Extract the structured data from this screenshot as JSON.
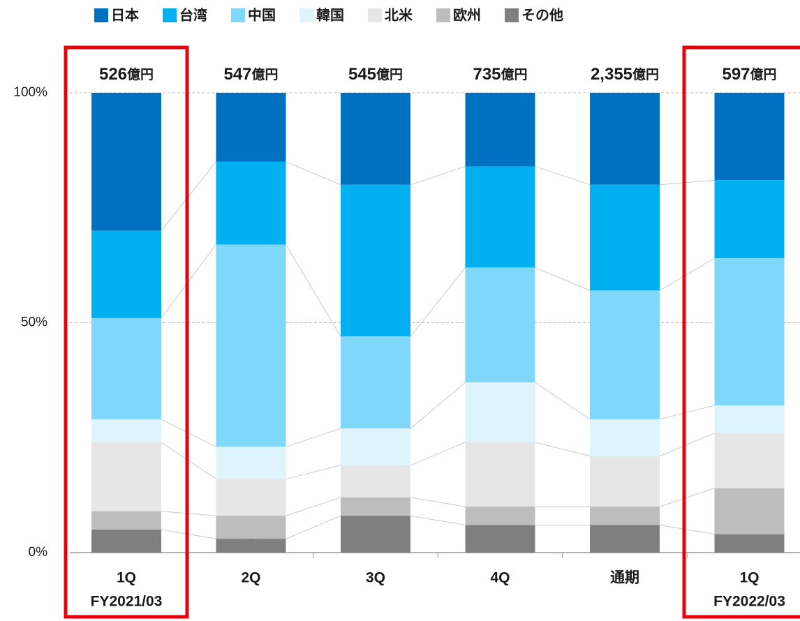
{
  "chart_data": {
    "type": "stacked_bar_percent",
    "categories": [
      "1Q",
      "2Q",
      "3Q",
      "4Q",
      "通期",
      "1Q"
    ],
    "category_sublabels": [
      "FY2021/03",
      null,
      null,
      null,
      null,
      "FY2022/03"
    ],
    "totals": [
      526,
      547,
      545,
      735,
      2355,
      597
    ],
    "total_labels": [
      "526",
      "547",
      "545",
      "735",
      "2,355",
      "597"
    ],
    "total_unit": "億円",
    "series": [
      {
        "name": "日本",
        "color": "#0070c0",
        "label_color": "#ffffff",
        "values": [
          30,
          15,
          20,
          16,
          20,
          19
        ]
      },
      {
        "name": "台湾",
        "color": "#00b0f0",
        "label_color": "#ffffff",
        "values": [
          19,
          18,
          33,
          22,
          23,
          17
        ]
      },
      {
        "name": "中国",
        "color": "#7fd7fa",
        "label_color": "#1a1a1a",
        "values": [
          22,
          44,
          20,
          25,
          28,
          32
        ]
      },
      {
        "name": "韓国",
        "color": "#ddf4fd",
        "label_color": "#1a1a1a",
        "values": [
          5,
          7,
          8,
          13,
          8,
          6
        ]
      },
      {
        "name": "北米",
        "color": "#e6e6e6",
        "label_color": "#1a1a1a",
        "values": [
          15,
          8,
          7,
          14,
          11,
          12
        ]
      },
      {
        "name": "欧州",
        "color": "#bdbdbd",
        "label_color": "#1a1a1a",
        "values": [
          4,
          5,
          4,
          4,
          4,
          10
        ]
      },
      {
        "name": "その他",
        "color": "#7f7f7f",
        "label_color": "#ffffff",
        "values": [
          5,
          3,
          8,
          6,
          6,
          4
        ]
      }
    ],
    "ylim": [
      0,
      100
    ],
    "yticks": [
      {
        "value": 0,
        "label": "0%"
      },
      {
        "value": 50,
        "label": "50%"
      },
      {
        "value": 100,
        "label": "100%"
      }
    ],
    "grid": true
  }
}
